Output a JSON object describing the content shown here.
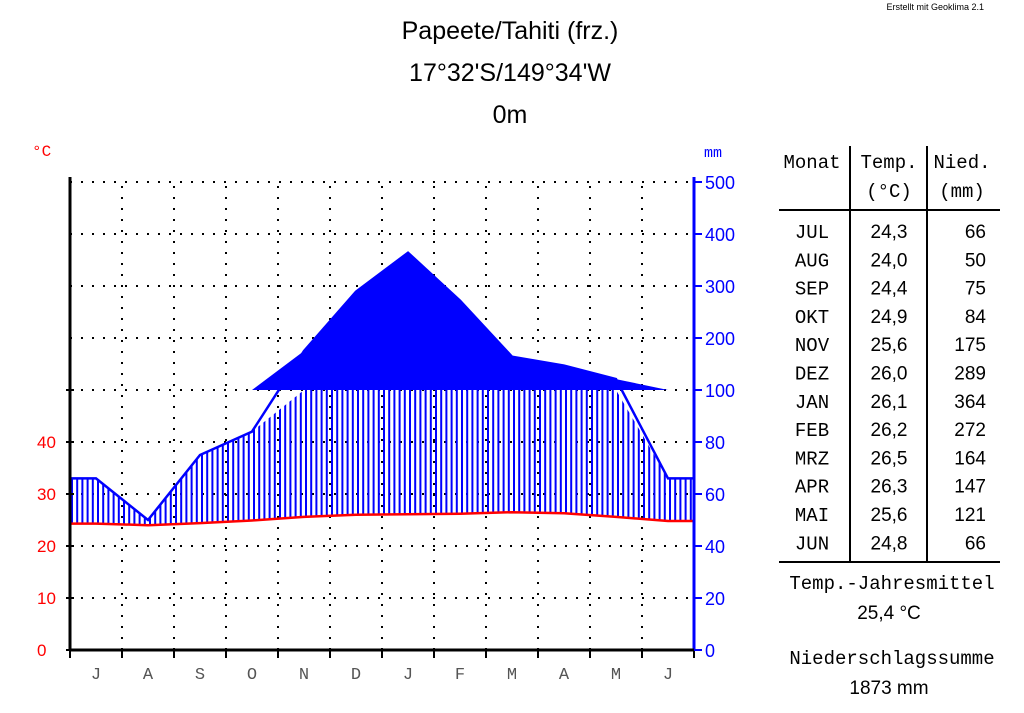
{
  "credit": "Erstellt mit Geoklima 2.1",
  "station": {
    "name": "Papeete/Tahiti (frz.)",
    "coords": "17°32'S/149°34'W",
    "elevation": "0m"
  },
  "colors": {
    "temperature": "#ff0000",
    "precipitation": "#0000ff",
    "axis": "#000000"
  },
  "chart_data": {
    "type": "line",
    "subtype": "Walter-Lieth climate diagram",
    "categories": [
      "J",
      "A",
      "S",
      "O",
      "N",
      "D",
      "J",
      "F",
      "M",
      "A",
      "M",
      "J"
    ],
    "left_axis": {
      "unit": "°C",
      "ticks": [
        "0",
        "10",
        "20",
        "30",
        "40"
      ],
      "ylim": [
        0,
        50
      ]
    },
    "right_axis": {
      "unit": "mm",
      "ticks": [
        "0",
        "20",
        "40",
        "60",
        "80",
        "100",
        "200",
        "300",
        "400",
        "500"
      ],
      "ylim": [
        0,
        500
      ],
      "scale": "20 mm per 10 °C up to 100 mm, 100 mm per 10 °C above"
    },
    "series": [
      {
        "name": "Temp.",
        "unit": "°C",
        "values": [
          24.3,
          24.0,
          24.4,
          24.9,
          25.6,
          26.0,
          26.1,
          26.2,
          26.5,
          26.3,
          25.6,
          24.8
        ]
      },
      {
        "name": "Nied.",
        "unit": "mm",
        "values": [
          66,
          50,
          75,
          84,
          175,
          289,
          364,
          272,
          164,
          147,
          121,
          66
        ]
      }
    ],
    "grid": true
  },
  "table": {
    "headers": {
      "month": "Monat",
      "temp": "Temp.",
      "temp_unit": "(°C)",
      "precip": "Nied.",
      "precip_unit": "(mm)"
    },
    "rows": [
      {
        "month": "JUL",
        "temp": "24,3",
        "precip": "66"
      },
      {
        "month": "AUG",
        "temp": "24,0",
        "precip": "50"
      },
      {
        "month": "SEP",
        "temp": "24,4",
        "precip": "75"
      },
      {
        "month": "OKT",
        "temp": "24,9",
        "precip": "84"
      },
      {
        "month": "NOV",
        "temp": "25,6",
        "precip": "175"
      },
      {
        "month": "DEZ",
        "temp": "26,0",
        "precip": "289"
      },
      {
        "month": "JAN",
        "temp": "26,1",
        "precip": "364"
      },
      {
        "month": "FEB",
        "temp": "26,2",
        "precip": "272"
      },
      {
        "month": "MRZ",
        "temp": "26,5",
        "precip": "164"
      },
      {
        "month": "APR",
        "temp": "26,3",
        "precip": "147"
      },
      {
        "month": "MAI",
        "temp": "25,6",
        "precip": "121"
      },
      {
        "month": "JUN",
        "temp": "24,8",
        "precip": "66"
      }
    ]
  },
  "summary": {
    "mean_temp_label": "Temp.-Jahresmittel",
    "mean_temp_value": "25,4 °C",
    "precip_sum_label": "Niederschlagssumme",
    "precip_sum_value": "1873 mm"
  }
}
